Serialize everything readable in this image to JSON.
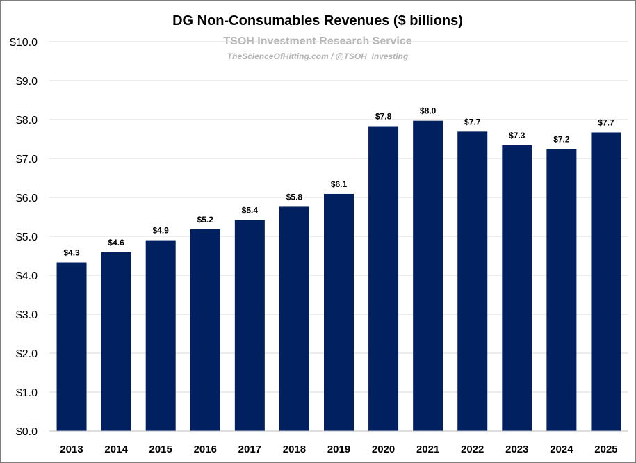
{
  "chart_data": {
    "type": "bar",
    "title": "DG Non-Consumables Revenues ($ billions)",
    "subtitle": "TSOH Investment Research Service",
    "source_note": "TheScienceOfHitting.com / @TSOH_Investing",
    "categories": [
      "2013",
      "2014",
      "2015",
      "2016",
      "2017",
      "2018",
      "2019",
      "2020",
      "2021",
      "2022",
      "2023",
      "2024",
      "2025"
    ],
    "values": [
      4.33,
      4.59,
      4.9,
      5.18,
      5.42,
      5.76,
      6.09,
      7.83,
      7.97,
      7.69,
      7.34,
      7.24,
      7.67
    ],
    "data_labels": [
      "$4.3",
      "$4.6",
      "$4.9",
      "$5.2",
      "$5.4",
      "$5.8",
      "$6.1",
      "$7.8",
      "$8.0",
      "$7.7",
      "$7.3",
      "$7.2",
      "$7.7"
    ],
    "y_tick_labels": [
      "$0.0",
      "$1.0",
      "$2.0",
      "$3.0",
      "$4.0",
      "$5.0",
      "$6.0",
      "$7.0",
      "$8.0",
      "$9.0",
      "$10.0"
    ],
    "xlabel": "",
    "ylabel": "",
    "ylim": [
      0,
      10
    ],
    "grid": true,
    "legend": "none",
    "colors": {
      "bar": "#002060"
    }
  }
}
